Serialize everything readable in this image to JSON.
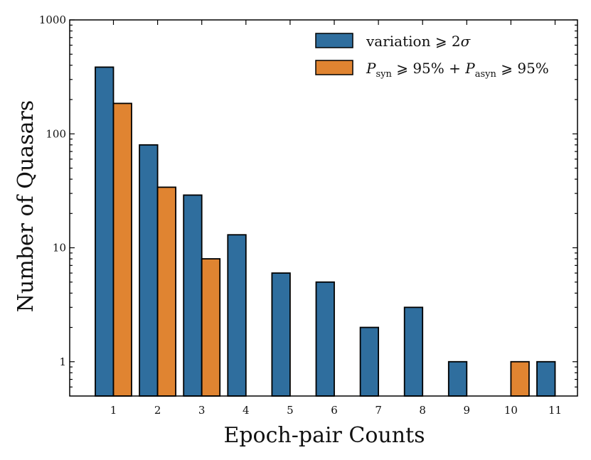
{
  "chart_data": {
    "type": "bar",
    "yscale": "log",
    "categories": [
      "1",
      "2",
      "3",
      "4",
      "5",
      "6",
      "7",
      "8",
      "9",
      "10",
      "11"
    ],
    "series": [
      {
        "name": "variation ⩾ 2σ",
        "color": "#2f6e9e",
        "values": [
          385,
          80,
          29,
          13,
          6,
          5,
          2,
          3,
          1,
          null,
          1
        ]
      },
      {
        "name": "P_syn ⩾ 95% + P_asyn ⩾ 95%",
        "color": "#e08431",
        "values": [
          185,
          34,
          8,
          null,
          null,
          null,
          null,
          null,
          null,
          1,
          null
        ]
      }
    ],
    "xlabel": "Epoch-pair Counts",
    "ylabel": "Number of Quasars",
    "ylim": [
      0.5,
      1000
    ],
    "yticks": [
      1,
      10,
      100,
      1000
    ],
    "ytick_labels": [
      "1",
      "10",
      "100",
      "1000"
    ],
    "legend": {
      "location": "top-right",
      "entries": [
        {
          "main": "variation ⩾ 2",
          "italic": "σ"
        },
        {
          "p1": "P",
          "sub1": "syn",
          "mid": " ⩾ 95% + ",
          "p2": "P",
          "sub2": "asyn",
          "end": " ⩾ 95%"
        }
      ]
    }
  }
}
